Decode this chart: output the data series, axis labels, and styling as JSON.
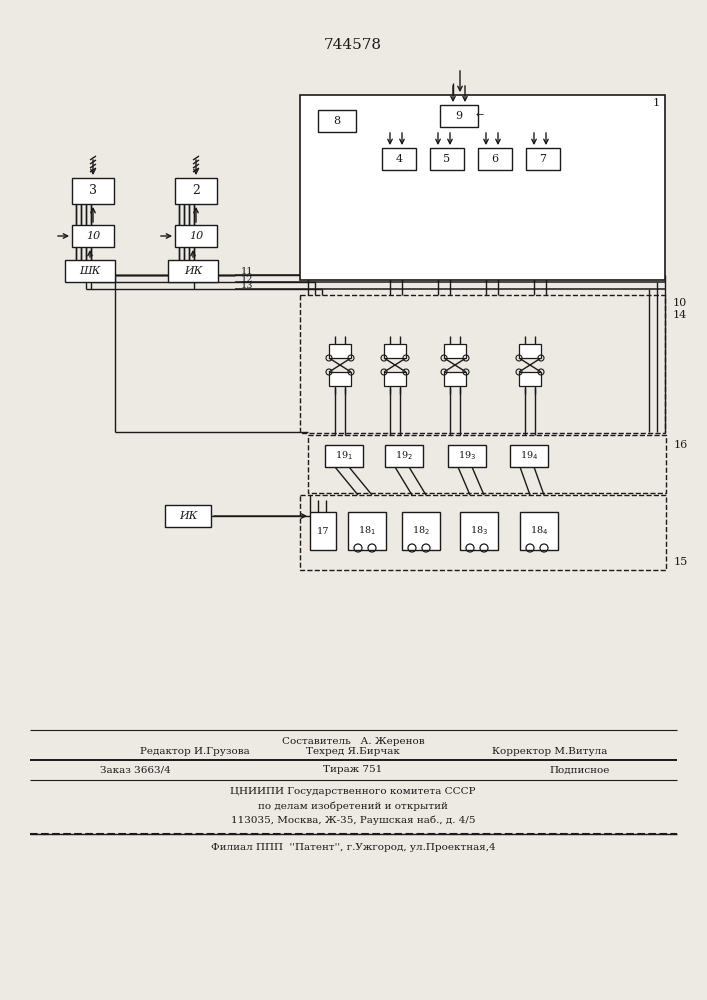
{
  "title": "744578",
  "bg_color": "#ede9e3",
  "line_color": "#1a1a1a",
  "box_color": "#ffffff",
  "text_color": "#1a1a1a",
  "footer": {
    "line1_center": "Составитель   А. Жеренов",
    "line2_left": "Редактор И.Грузова",
    "line2_center": "Техред Я.Бирчак",
    "line2_right": "Корректор М.Витула",
    "line3_left": "Заказ 3663/4",
    "line3_center": "Тираж 751",
    "line3_right": "Подписное",
    "line4": "ЦНИИПИ Государственного комитета СССР",
    "line5": "по делам изобретений и открытий",
    "line6": "113035, Москва, Ж-35, Раушская наб., д. 4/5",
    "line7": "Филиал ППП  ''Патент'', г.Ужгород, ул.Проектная,4"
  }
}
